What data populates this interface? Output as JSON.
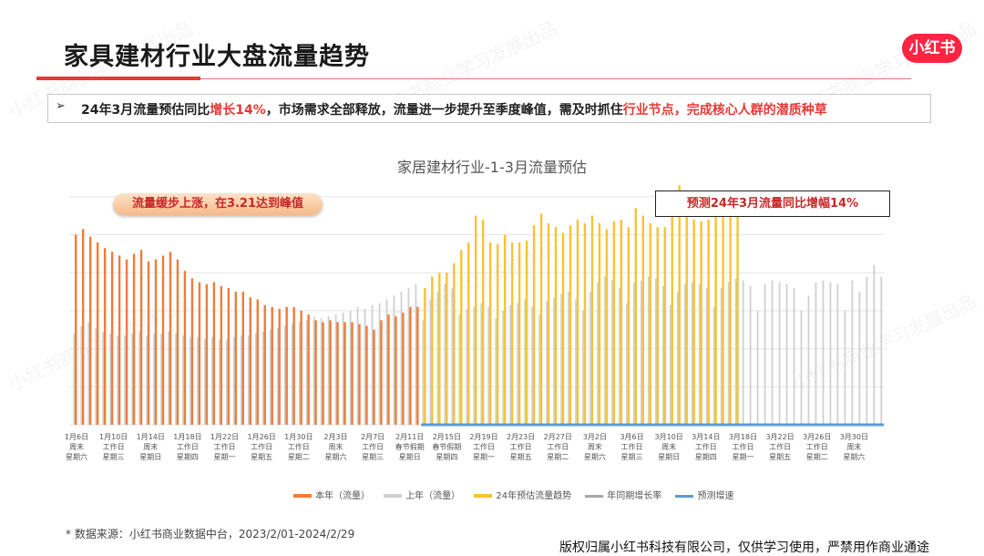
{
  "title": "家具建材行业大盘流量趋势",
  "logo": "小红书",
  "summary": {
    "arrow": "➢",
    "part1": "24年3月流量预估同比",
    "highlight1": "增长14%",
    "part2": "，市场需求全部释放，流量进一步提升至季度峰值，需及时抓住",
    "highlight2": "行业节点，完成核心人群的潜质种草"
  },
  "callouts": {
    "left": "流量缓步上涨，在3.21达到峰值",
    "right": "预测24年3月流量同比增幅14%"
  },
  "footnote": "* 数据来源：小红书商业数据中台，2023/2/01-2024/2/29",
  "copyright": "版权归属小红书科技有限公司，仅供学习使用，严禁用作商业通途",
  "watermark": "小红书商业学习发展出品",
  "colors": {
    "this_year": "#ef7d37",
    "last_year": "#d0d0d0",
    "forecast": "#f7c331",
    "yoy_line": "#a6a6a6",
    "forecast_growth": "#5b9bd5",
    "brand": "#ff2442",
    "accent_red": "#e53935"
  },
  "chart_data": {
    "type": "bar",
    "title": "家居建材行业-1-3月流量预估",
    "grid": true,
    "legend_position": "bottom",
    "legend": [
      "本年（流量）",
      "上年（流量）",
      "24年预估流量趋势",
      "年同期增长率",
      "预测增速"
    ],
    "x_tick_labels": [
      [
        "1月6日",
        "周末",
        "星期六"
      ],
      [
        "1月10日",
        "工作日",
        "星期三"
      ],
      [
        "1月14日",
        "周末",
        "星期日"
      ],
      [
        "1月18日",
        "工作日",
        "星期四"
      ],
      [
        "1月22日",
        "工作日",
        "星期一"
      ],
      [
        "1月26日",
        "工作日",
        "星期五"
      ],
      [
        "1月30日",
        "工作日",
        "星期二"
      ],
      [
        "2月3日",
        "周末",
        "星期六"
      ],
      [
        "2月7日",
        "工作日",
        "星期三"
      ],
      [
        "2月11日",
        "春节假期",
        "星期日"
      ],
      [
        "2月15日",
        "春节假期",
        "星期四"
      ],
      [
        "2月19日",
        "工作日",
        "星期一"
      ],
      [
        "2月23日",
        "工作日",
        "星期五"
      ],
      [
        "2月27日",
        "工作日",
        "星期二"
      ],
      [
        "3月2日",
        "周末",
        "星期六"
      ],
      [
        "3月6日",
        "工作日",
        "星期三"
      ],
      [
        "3月10日",
        "周末",
        "星期日"
      ],
      [
        "3月14日",
        "工作日",
        "星期四"
      ],
      [
        "3月18日",
        "工作日",
        "星期一"
      ],
      [
        "3月22日",
        "工作日",
        "星期五"
      ],
      [
        "3月26日",
        "工作日",
        "星期二"
      ],
      [
        "3月30日",
        "周末",
        "星期六"
      ]
    ],
    "series": [
      {
        "name": "本年（流量）",
        "values": [
          100,
          103,
          99,
          96,
          93,
          91,
          89,
          87,
          90,
          92,
          86,
          87,
          89,
          91,
          87,
          81,
          77,
          75,
          74,
          75,
          73,
          72,
          70,
          70,
          67,
          66,
          63,
          62,
          61,
          62,
          62,
          60,
          58,
          55,
          54,
          55,
          54,
          54,
          54,
          53,
          52,
          50,
          55,
          58,
          57,
          59,
          62,
          62
        ]
      },
      {
        "name": "上年（流量）",
        "values": [
          48,
          52,
          54,
          51,
          49,
          48,
          47,
          47,
          48,
          49,
          47,
          48,
          48,
          49,
          48,
          47,
          46,
          46,
          45,
          46,
          45,
          45,
          46,
          47,
          47,
          48,
          49,
          50,
          51,
          52,
          53,
          54,
          55,
          57,
          56,
          57,
          58,
          59,
          60,
          62,
          61,
          63,
          64,
          66,
          68,
          70,
          72,
          74,
          55,
          66,
          70,
          74,
          72,
          58,
          61,
          62,
          64,
          62,
          56,
          60,
          63,
          64,
          66,
          62,
          58,
          65,
          67,
          69,
          70,
          66,
          60,
          70,
          75,
          78,
          76,
          72,
          64,
          75,
          76,
          78,
          77,
          73,
          63,
          70,
          74,
          75,
          74,
          72,
          62,
          72,
          75,
          77,
          76,
          73,
          60,
          74,
          76,
          75,
          74,
          72,
          60,
          68,
          75,
          76,
          75,
          74,
          60,
          76,
          70,
          78,
          84,
          78
        ]
      },
      {
        "name": "24年预估流量趋势",
        "values": [
          72,
          78,
          80,
          80,
          85,
          92,
          96,
          110,
          108,
          96,
          95,
          100,
          96,
          96,
          97,
          105,
          111,
          106,
          104,
          101,
          105,
          108,
          106,
          110,
          106,
          103,
          107,
          108,
          104,
          114,
          110,
          106,
          104,
          104,
          114,
          126,
          111,
          108,
          107,
          108,
          110,
          112,
          118,
          116
        ]
      }
    ],
    "ylim": [
      0,
      130
    ]
  }
}
